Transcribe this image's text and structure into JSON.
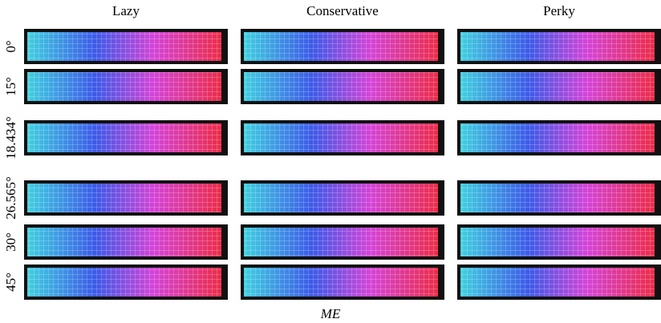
{
  "columns": [
    "Lazy",
    "Conservative",
    "Perky"
  ],
  "rows": [
    "0°",
    "15°",
    "18.434°",
    "26.565°",
    "30°",
    "45°"
  ],
  "xlabel": "ME"
}
